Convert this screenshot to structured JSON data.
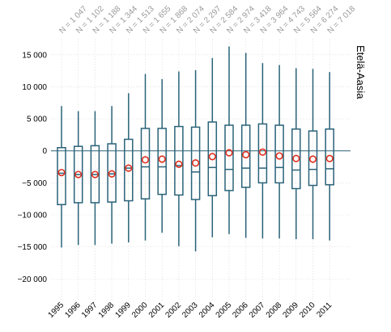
{
  "chart_data": {
    "type": "boxplot",
    "panel_title": "Etelä-Aasia",
    "categories": [
      "1995",
      "1996",
      "1997",
      "1998",
      "1999",
      "2000",
      "2001",
      "2002",
      "2003",
      "2004",
      "2005",
      "2006",
      "2007",
      "2008",
      "2009",
      "2010",
      "2011"
    ],
    "n_labels": [
      "N = 1 047",
      "N = 1 102",
      "N = 1 188",
      "N = 1 344",
      "N = 1 513",
      "N = 1 655",
      "N = 1 868",
      "N = 2 074",
      "N = 2 297",
      "N = 2 584",
      "N = 2 974",
      "N = 3 418",
      "N = 3 964",
      "N = 4 743",
      "N = 5 564",
      "N = 6 274",
      "N = 7 018"
    ],
    "boxes": [
      {
        "whisker_low": -15100,
        "q1": -8400,
        "median": -3500,
        "q3": 500,
        "whisker_high": 7000,
        "mean": -3400
      },
      {
        "whisker_low": -14700,
        "q1": -8100,
        "median": -3700,
        "q3": 700,
        "whisker_high": 6200,
        "mean": -3700
      },
      {
        "whisker_low": -14700,
        "q1": -8100,
        "median": -3700,
        "q3": 800,
        "whisker_high": 6200,
        "mean": -3700
      },
      {
        "whisker_low": -14500,
        "q1": -8000,
        "median": -3600,
        "q3": 1100,
        "whisker_high": 7000,
        "mean": -3600
      },
      {
        "whisker_low": -14300,
        "q1": -7800,
        "median": -2700,
        "q3": 1800,
        "whisker_high": 9000,
        "mean": -2700
      },
      {
        "whisker_low": -14000,
        "q1": -7500,
        "median": -2500,
        "q3": 3500,
        "whisker_high": 12000,
        "mean": -1400
      },
      {
        "whisker_low": -12800,
        "q1": -6800,
        "median": -2500,
        "q3": 3500,
        "whisker_high": 11200,
        "mean": -1300
      },
      {
        "whisker_low": -14900,
        "q1": -6900,
        "median": -2300,
        "q3": 3800,
        "whisker_high": 12400,
        "mean": -2100
      },
      {
        "whisker_low": -15700,
        "q1": -7600,
        "median": -3300,
        "q3": 3700,
        "whisker_high": 12600,
        "mean": -1900
      },
      {
        "whisker_low": -13500,
        "q1": -7000,
        "median": -2600,
        "q3": 4500,
        "whisker_high": 14500,
        "mean": -900
      },
      {
        "whisker_low": -13000,
        "q1": -6200,
        "median": -2900,
        "q3": 4000,
        "whisker_high": 16300,
        "mean": -300
      },
      {
        "whisker_low": -13600,
        "q1": -5700,
        "median": -2700,
        "q3": 4000,
        "whisker_high": 15300,
        "mean": -600
      },
      {
        "whisker_low": -13700,
        "q1": -5000,
        "median": -2700,
        "q3": 4200,
        "whisker_high": 13700,
        "mean": -200
      },
      {
        "whisker_low": -13700,
        "q1": -5000,
        "median": -2600,
        "q3": 4000,
        "whisker_high": 13400,
        "mean": -800
      },
      {
        "whisker_low": -13800,
        "q1": -5900,
        "median": -3000,
        "q3": 3400,
        "whisker_high": 12900,
        "mean": -1200
      },
      {
        "whisker_low": -13800,
        "q1": -5400,
        "median": -2900,
        "q3": 3100,
        "whisker_high": 12800,
        "mean": -1300
      },
      {
        "whisker_low": -14000,
        "q1": -5300,
        "median": -2800,
        "q3": 3400,
        "whisker_high": 12300,
        "mean": -1200
      }
    ],
    "y_ticks": [
      {
        "value": 15000,
        "label": "15 000"
      },
      {
        "value": 10000,
        "label": "10 000"
      },
      {
        "value": 5000,
        "label": "5 000"
      },
      {
        "value": 0,
        "label": "0"
      },
      {
        "value": -5000,
        "label": "−5 000"
      },
      {
        "value": -10000,
        "label": "−10 000"
      },
      {
        "value": -15000,
        "label": "−15 000"
      },
      {
        "value": -20000,
        "label": "−20 000"
      }
    ],
    "ylim": [
      -23500,
      17500
    ],
    "grid": true,
    "colors": {
      "box": "#2a6278",
      "mean_marker": "#e0301e",
      "zero_line": "#2a6278",
      "grid": "#dcdcdc",
      "n_label": "#9a9a9a"
    }
  }
}
